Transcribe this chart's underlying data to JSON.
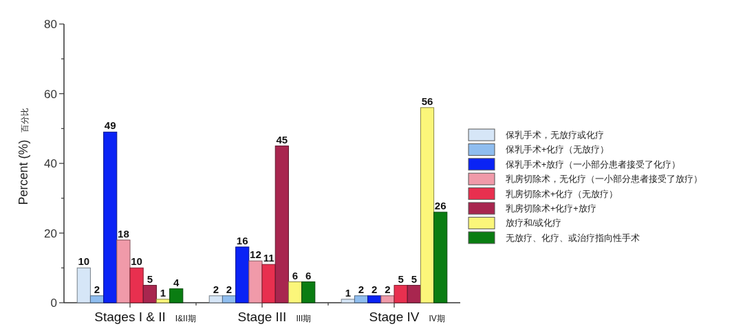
{
  "chart_data": {
    "type": "bar",
    "ylabel": "Percent (%) 百分比",
    "categories": [
      "Stages I & II I&II期",
      "Stage III III期",
      "Stage IV IV期"
    ],
    "series": [
      {
        "name": "保乳手术，无放疗或化疗",
        "color": "#d6e6f7",
        "values": [
          10,
          2,
          1
        ]
      },
      {
        "name": "保乳手术+化疗（无放疗）",
        "color": "#8fbdef",
        "values": [
          2,
          2,
          2
        ]
      },
      {
        "name": "保乳手术+放疗（一小部分患者接受了化疗）",
        "color": "#0a23f5",
        "values": [
          49,
          16,
          2
        ]
      },
      {
        "name": "乳房切除术，无化疗（一小部分患者接受了放疗）",
        "color": "#f09aa9",
        "values": [
          18,
          12,
          2
        ]
      },
      {
        "name": "乳房切除术+化疗（无放疗）",
        "color": "#e8304f",
        "values": [
          10,
          11,
          5
        ]
      },
      {
        "name": "乳房切除术+化疗+放疗",
        "color": "#a8264f",
        "values": [
          5,
          45,
          5
        ]
      },
      {
        "name": "放疗和/或化疗",
        "color": "#fbf67a",
        "values": [
          1,
          6,
          56
        ]
      },
      {
        "name": "无放疗、化疗、或治疗指向性手术",
        "color": "#0a7d12",
        "values": [
          4,
          6,
          26
        ]
      }
    ],
    "ylim": [
      0,
      80
    ],
    "yticks": [
      0,
      {
        "value": 10,
        "label": null
      },
      20,
      {
        "value": 30,
        "label": null
      },
      40,
      {
        "value": 50,
        "label": null
      },
      60,
      {
        "value": 70,
        "label": null
      },
      80
    ],
    "legend": "right",
    "data_labels": true
  }
}
